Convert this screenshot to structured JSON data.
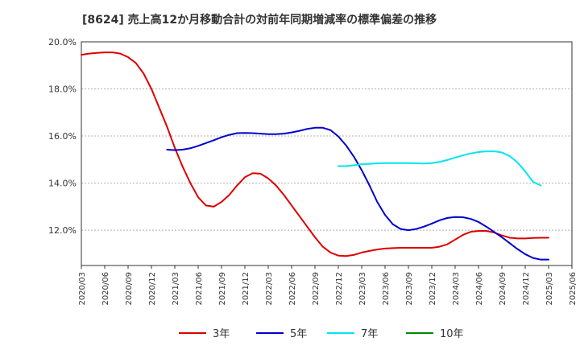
{
  "chart_data": {
    "type": "line",
    "title": "[8624]  売上高12か月移動合計の対前年同期増減率の標準偏差の推移",
    "xlabel": "",
    "ylabel": "",
    "ylim": [
      10.5,
      20.0
    ],
    "y_ticks": [
      {
        "value": 12.0,
        "label": "12.0%"
      },
      {
        "value": 14.0,
        "label": "14.0%"
      },
      {
        "value": 16.0,
        "label": "16.0%"
      },
      {
        "value": 18.0,
        "label": "18.0%"
      },
      {
        "value": 20.0,
        "label": "20.0%"
      }
    ],
    "x_ticks": [
      "2020/03",
      "2020/06",
      "2020/09",
      "2020/12",
      "2021/03",
      "2021/06",
      "2021/09",
      "2021/12",
      "2022/03",
      "2022/06",
      "2022/09",
      "2022/12",
      "2023/03",
      "2023/06",
      "2023/09",
      "2023/12",
      "2024/03",
      "2024/06",
      "2024/09",
      "2024/12",
      "2025/03",
      "2025/06"
    ],
    "grid": true,
    "legend_position": "bottom",
    "series": [
      {
        "name": "3年",
        "color": "#dd0000",
        "points": [
          [
            "2020/03",
            19.45
          ],
          [
            "2020/04",
            19.5
          ],
          [
            "2020/05",
            19.53
          ],
          [
            "2020/06",
            19.55
          ],
          [
            "2020/07",
            19.55
          ],
          [
            "2020/08",
            19.5
          ],
          [
            "2020/09",
            19.35
          ],
          [
            "2020/10",
            19.1
          ],
          [
            "2020/11",
            18.65
          ],
          [
            "2020/12",
            18.0
          ],
          [
            "2021/01",
            17.2
          ],
          [
            "2021/02",
            16.4
          ],
          [
            "2021/03",
            15.5
          ],
          [
            "2021/04",
            14.7
          ],
          [
            "2021/05",
            14.0
          ],
          [
            "2021/06",
            13.4
          ],
          [
            "2021/07",
            13.05
          ],
          [
            "2021/08",
            13.0
          ],
          [
            "2021/09",
            13.2
          ],
          [
            "2021/10",
            13.5
          ],
          [
            "2021/11",
            13.9
          ],
          [
            "2021/12",
            14.25
          ],
          [
            "2022/01",
            14.42
          ],
          [
            "2022/02",
            14.4
          ],
          [
            "2022/03",
            14.2
          ],
          [
            "2022/04",
            13.9
          ],
          [
            "2022/05",
            13.5
          ],
          [
            "2022/06",
            13.05
          ],
          [
            "2022/07",
            12.6
          ],
          [
            "2022/08",
            12.15
          ],
          [
            "2022/09",
            11.7
          ],
          [
            "2022/10",
            11.3
          ],
          [
            "2022/11",
            11.05
          ],
          [
            "2022/12",
            10.92
          ],
          [
            "2023/01",
            10.9
          ],
          [
            "2023/02",
            10.95
          ],
          [
            "2023/03",
            11.05
          ],
          [
            "2023/04",
            11.12
          ],
          [
            "2023/05",
            11.18
          ],
          [
            "2023/06",
            11.22
          ],
          [
            "2023/07",
            11.24
          ],
          [
            "2023/08",
            11.25
          ],
          [
            "2023/09",
            11.25
          ],
          [
            "2023/10",
            11.25
          ],
          [
            "2023/11",
            11.25
          ],
          [
            "2023/12",
            11.25
          ],
          [
            "2024/01",
            11.3
          ],
          [
            "2024/02",
            11.4
          ],
          [
            "2024/03",
            11.6
          ],
          [
            "2024/04",
            11.8
          ],
          [
            "2024/05",
            11.93
          ],
          [
            "2024/06",
            11.97
          ],
          [
            "2024/07",
            11.97
          ],
          [
            "2024/08",
            11.9
          ],
          [
            "2024/09",
            11.78
          ],
          [
            "2024/10",
            11.68
          ],
          [
            "2024/11",
            11.65
          ],
          [
            "2024/12",
            11.65
          ],
          [
            "2025/01",
            11.67
          ],
          [
            "2025/02",
            11.68
          ],
          [
            "2025/03",
            11.68
          ]
        ]
      },
      {
        "name": "5年",
        "color": "#0000cc",
        "points": [
          [
            "2021/02",
            15.42
          ],
          [
            "2021/03",
            15.4
          ],
          [
            "2021/04",
            15.42
          ],
          [
            "2021/05",
            15.48
          ],
          [
            "2021/06",
            15.58
          ],
          [
            "2021/07",
            15.7
          ],
          [
            "2021/08",
            15.82
          ],
          [
            "2021/09",
            15.95
          ],
          [
            "2021/10",
            16.05
          ],
          [
            "2021/11",
            16.12
          ],
          [
            "2021/12",
            16.13
          ],
          [
            "2022/01",
            16.12
          ],
          [
            "2022/02",
            16.1
          ],
          [
            "2022/03",
            16.08
          ],
          [
            "2022/04",
            16.08
          ],
          [
            "2022/05",
            16.1
          ],
          [
            "2022/06",
            16.15
          ],
          [
            "2022/07",
            16.22
          ],
          [
            "2022/08",
            16.3
          ],
          [
            "2022/09",
            16.35
          ],
          [
            "2022/10",
            16.35
          ],
          [
            "2022/11",
            16.25
          ],
          [
            "2022/12",
            15.98
          ],
          [
            "2023/01",
            15.6
          ],
          [
            "2023/02",
            15.12
          ],
          [
            "2023/03",
            14.55
          ],
          [
            "2023/04",
            13.9
          ],
          [
            "2023/05",
            13.2
          ],
          [
            "2023/06",
            12.65
          ],
          [
            "2023/07",
            12.25
          ],
          [
            "2023/08",
            12.05
          ],
          [
            "2023/09",
            12.0
          ],
          [
            "2023/10",
            12.05
          ],
          [
            "2023/11",
            12.15
          ],
          [
            "2023/12",
            12.28
          ],
          [
            "2024/01",
            12.42
          ],
          [
            "2024/02",
            12.52
          ],
          [
            "2024/03",
            12.56
          ],
          [
            "2024/04",
            12.55
          ],
          [
            "2024/05",
            12.48
          ],
          [
            "2024/06",
            12.35
          ],
          [
            "2024/07",
            12.15
          ],
          [
            "2024/08",
            11.93
          ],
          [
            "2024/09",
            11.7
          ],
          [
            "2024/10",
            11.45
          ],
          [
            "2024/11",
            11.2
          ],
          [
            "2024/12",
            10.98
          ],
          [
            "2025/01",
            10.82
          ],
          [
            "2025/02",
            10.75
          ],
          [
            "2025/03",
            10.75
          ]
        ]
      },
      {
        "name": "7年",
        "color": "#00e5ee",
        "points": [
          [
            "2022/12",
            14.72
          ],
          [
            "2023/01",
            14.72
          ],
          [
            "2023/02",
            14.76
          ],
          [
            "2023/03",
            14.8
          ],
          [
            "2023/04",
            14.82
          ],
          [
            "2023/05",
            14.84
          ],
          [
            "2023/06",
            14.85
          ],
          [
            "2023/07",
            14.85
          ],
          [
            "2023/08",
            14.85
          ],
          [
            "2023/09",
            14.85
          ],
          [
            "2023/10",
            14.84
          ],
          [
            "2023/11",
            14.83
          ],
          [
            "2023/12",
            14.85
          ],
          [
            "2024/01",
            14.9
          ],
          [
            "2024/02",
            14.98
          ],
          [
            "2024/03",
            15.08
          ],
          [
            "2024/04",
            15.18
          ],
          [
            "2024/05",
            15.26
          ],
          [
            "2024/06",
            15.32
          ],
          [
            "2024/07",
            15.35
          ],
          [
            "2024/08",
            15.35
          ],
          [
            "2024/09",
            15.3
          ],
          [
            "2024/10",
            15.15
          ],
          [
            "2024/11",
            14.88
          ],
          [
            "2024/12",
            14.5
          ],
          [
            "2025/01",
            14.05
          ],
          [
            "2025/02",
            13.9
          ]
        ]
      },
      {
        "name": "10年",
        "color": "#008800",
        "points": []
      }
    ]
  }
}
